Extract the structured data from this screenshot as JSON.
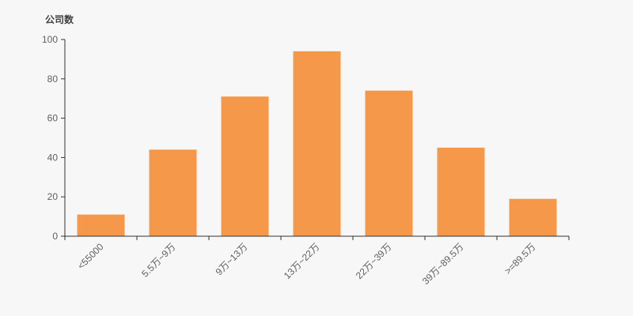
{
  "chart": {
    "title": "公司数"
  },
  "chart_data": {
    "type": "bar",
    "title": "公司数",
    "categories": [
      "<55000",
      "5.5万~9万",
      "9万~13万",
      "13万~22万",
      "22万~39万",
      "39万~89.5万",
      ">=89.5万"
    ],
    "values": [
      11,
      44,
      71,
      94,
      74,
      45,
      19
    ],
    "xlabel": "",
    "ylabel": "公司数",
    "ylim": [
      0,
      100
    ],
    "yticks": [
      0,
      20,
      40,
      60,
      80,
      100
    ],
    "x_label_rotation": 45,
    "grid": false,
    "legend_position": "none",
    "colors": {
      "bar": "#f6984a",
      "background": "#f7f7f7",
      "axis": "#333333",
      "tick_label": "#606060",
      "title_text": "#404040"
    }
  }
}
